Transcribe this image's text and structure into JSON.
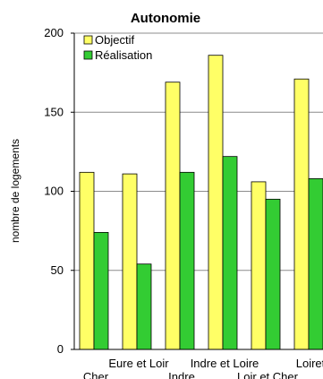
{
  "chart_data": {
    "type": "bar",
    "title": "Autonomie",
    "xlabel": "",
    "ylabel": "nombre de logements",
    "ylim": [
      0,
      200
    ],
    "yticks": [
      0,
      50,
      100,
      150,
      200
    ],
    "grid": true,
    "legend_position": "top-left",
    "categories": [
      "Cher",
      "Eure et Loir",
      "Indre",
      "Indre et Loire",
      "Loir et Cher",
      "Loiret"
    ],
    "series": [
      {
        "name": "Objectif",
        "color": "#ffff66",
        "values": [
          112,
          111,
          169,
          186,
          106,
          171
        ]
      },
      {
        "name": "Réalisation",
        "color": "#33cc33",
        "values": [
          74,
          54,
          112,
          122,
          95,
          108
        ]
      }
    ]
  }
}
